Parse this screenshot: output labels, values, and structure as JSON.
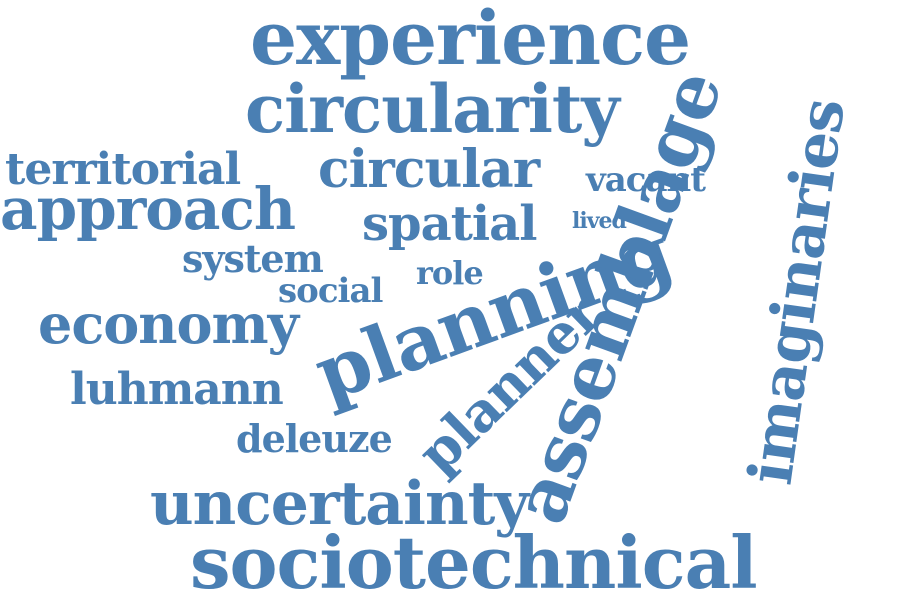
{
  "word_color": "#4a7fb3",
  "background": "#ffffff",
  "words": {
    "experience": "experience",
    "circularity": "circularity",
    "territorial": "territorial",
    "circular": "circular",
    "vacant": "vacant",
    "approach": "approach",
    "spatial": "spatial",
    "lived": "lived",
    "system": "system",
    "role": "role",
    "social": "social",
    "economy": "economy",
    "planning": "planning",
    "planner": "planner",
    "luhmann": "luhmann",
    "deleuze": "deleuze",
    "assemblage": "assemblage",
    "imaginaries": "imaginaries",
    "uncertainty": "uncertainty",
    "sociotechnical": "sociotechnical"
  }
}
